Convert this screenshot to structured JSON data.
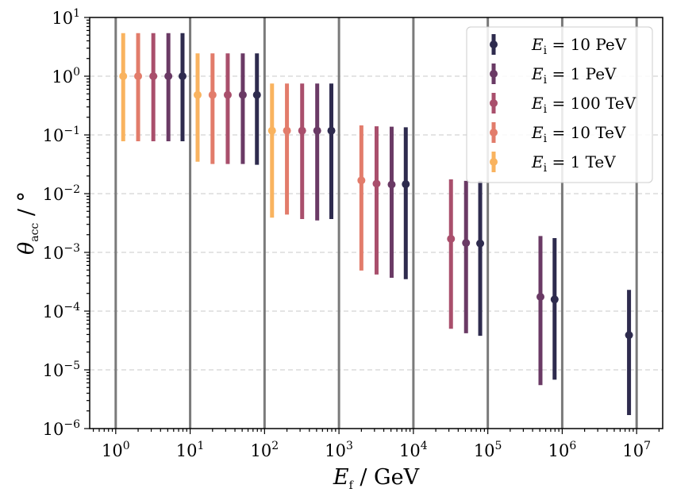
{
  "chart_data": {
    "type": "errorbar",
    "x_scale": "log",
    "y_scale": "log",
    "xlim_exp": [
      -0.35,
      7.35
    ],
    "ylim_exp": [
      -6,
      1
    ],
    "xlabel": {
      "main": "E",
      "sub": "f",
      "rest": " / GeV"
    },
    "ylabel": {
      "main": "θ",
      "sub": "acc",
      "rest": " / °"
    },
    "x_ticks": [
      {
        "base": "10",
        "exp": "0"
      },
      {
        "base": "10",
        "exp": "1"
      },
      {
        "base": "10",
        "exp": "2"
      },
      {
        "base": "10",
        "exp": "3"
      },
      {
        "base": "10",
        "exp": "4"
      },
      {
        "base": "10",
        "exp": "5"
      },
      {
        "base": "10",
        "exp": "6"
      },
      {
        "base": "10",
        "exp": "7"
      }
    ],
    "y_ticks": [
      {
        "base": "10",
        "exp": "−6"
      },
      {
        "base": "10",
        "exp": "−5"
      },
      {
        "base": "10",
        "exp": "−4"
      },
      {
        "base": "10",
        "exp": "−3"
      },
      {
        "base": "10",
        "exp": "−2"
      },
      {
        "base": "10",
        "exp": "−1"
      },
      {
        "base": "10",
        "exp": "0"
      },
      {
        "base": "10",
        "exp": "1"
      }
    ],
    "vertical_lines_x": [
      1,
      10,
      100,
      1000,
      10000,
      100000,
      1000000,
      10000000
    ],
    "horizontal_grid": "dashed",
    "legend_position": "top-right",
    "series": [
      {
        "name": "E_i = 10 PeV",
        "legend_main": "E",
        "legend_sub": "i",
        "legend_value": " = 10 PeV",
        "color": "#2e2b4e",
        "points": [
          {
            "x": 7.9,
            "y": 1.0,
            "ylow": 0.078,
            "yhigh": 5.4
          },
          {
            "x": 79,
            "y": 0.48,
            "ylow": 0.031,
            "yhigh": 2.45
          },
          {
            "x": 790,
            "y": 0.118,
            "ylow": 0.0037,
            "yhigh": 0.75
          },
          {
            "x": 7900,
            "y": 0.0145,
            "ylow": 0.00035,
            "yhigh": 0.135
          },
          {
            "x": 79000,
            "y": 0.00142,
            "ylow": 3.8e-05,
            "yhigh": 0.0165
          },
          {
            "x": 790000,
            "y": 0.000158,
            "ylow": 6.8e-06,
            "yhigh": 0.00175
          },
          {
            "x": 7900000,
            "y": 3.9e-05,
            "ylow": 1.7e-06,
            "yhigh": 0.00023
          }
        ]
      },
      {
        "name": "E_i = 1 PeV",
        "legend_main": "E",
        "legend_sub": "i",
        "legend_value": " = 1 PeV",
        "color": "#6a3a65",
        "points": [
          {
            "x": 5.1,
            "y": 1.0,
            "ylow": 0.078,
            "yhigh": 5.4
          },
          {
            "x": 51,
            "y": 0.48,
            "ylow": 0.032,
            "yhigh": 2.45
          },
          {
            "x": 510,
            "y": 0.118,
            "ylow": 0.0035,
            "yhigh": 0.75
          },
          {
            "x": 5100,
            "y": 0.0143,
            "ylow": 0.00037,
            "yhigh": 0.138
          },
          {
            "x": 51000,
            "y": 0.00145,
            "ylow": 4.2e-05,
            "yhigh": 0.0165
          },
          {
            "x": 510000,
            "y": 0.000175,
            "ylow": 5.5e-06,
            "yhigh": 0.0019
          }
        ]
      },
      {
        "name": "E_i = 100 TeV",
        "legend_main": "E",
        "legend_sub": "i",
        "legend_value": " = 100 TeV",
        "color": "#a94f6c",
        "points": [
          {
            "x": 3.2,
            "y": 1.0,
            "ylow": 0.078,
            "yhigh": 5.4
          },
          {
            "x": 32,
            "y": 0.48,
            "ylow": 0.032,
            "yhigh": 2.45
          },
          {
            "x": 320,
            "y": 0.118,
            "ylow": 0.0037,
            "yhigh": 0.75
          },
          {
            "x": 3200,
            "y": 0.0148,
            "ylow": 0.00042,
            "yhigh": 0.14
          },
          {
            "x": 32000,
            "y": 0.0017,
            "ylow": 5e-05,
            "yhigh": 0.0175
          }
        ]
      },
      {
        "name": "E_i = 10 TeV",
        "legend_main": "E",
        "legend_sub": "i",
        "legend_value": " = 10 TeV",
        "color": "#e27c6b",
        "points": [
          {
            "x": 2.0,
            "y": 1.0,
            "ylow": 0.078,
            "yhigh": 5.4
          },
          {
            "x": 20,
            "y": 0.48,
            "ylow": 0.032,
            "yhigh": 2.45
          },
          {
            "x": 200,
            "y": 0.118,
            "ylow": 0.0044,
            "yhigh": 0.75
          },
          {
            "x": 2000,
            "y": 0.0168,
            "ylow": 0.00049,
            "yhigh": 0.145
          }
        ]
      },
      {
        "name": "E_i = 1 TeV",
        "legend_main": "E",
        "legend_sub": "i",
        "legend_value": " = 1 TeV",
        "color": "#f9b35f",
        "points": [
          {
            "x": 1.26,
            "y": 1.0,
            "ylow": 0.078,
            "yhigh": 5.4
          },
          {
            "x": 12.6,
            "y": 0.48,
            "ylow": 0.035,
            "yhigh": 2.45
          },
          {
            "x": 126,
            "y": 0.118,
            "ylow": 0.0039,
            "yhigh": 0.75
          }
        ]
      }
    ]
  }
}
